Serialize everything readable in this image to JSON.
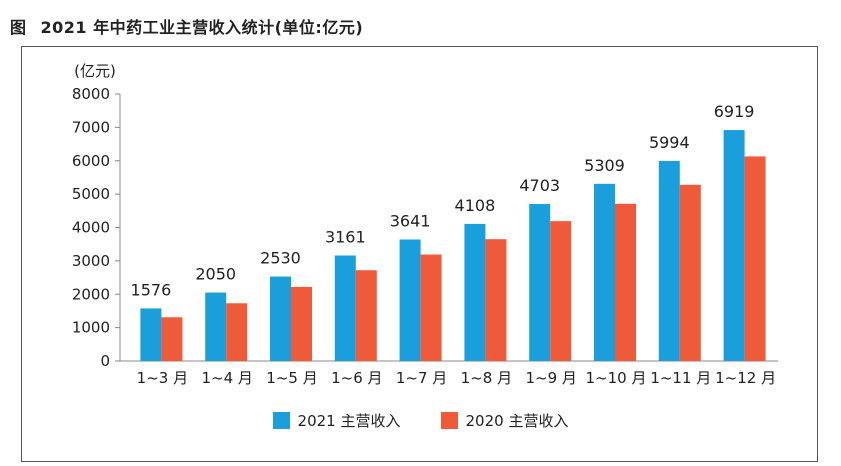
{
  "figure": {
    "label": "图",
    "title": "2021 年中药工业主营收入统计(单位:亿元)"
  },
  "chart_data": {
    "type": "bar",
    "unit_label": "(亿元)",
    "categories": [
      "1~3 月",
      "1~4 月",
      "1~5 月",
      "1~6 月",
      "1~7 月",
      "1~8 月",
      "1~9 月",
      "1~10 月",
      "1~11 月",
      "1~12 月"
    ],
    "series": [
      {
        "name": "2021 主营收入",
        "color": "#1a9fdc",
        "values": [
          1576,
          2050,
          2530,
          3161,
          3641,
          4108,
          4703,
          5309,
          5994,
          6919
        ],
        "data_labels": [
          "1576",
          "2050",
          "2530",
          "3161",
          "3641",
          "4108",
          "4703",
          "5309",
          "5994",
          "6919"
        ]
      },
      {
        "name": "2020 主营收入",
        "color": "#ef5a3a",
        "values": [
          1310,
          1730,
          2220,
          2720,
          3190,
          3650,
          4190,
          4710,
          5280,
          6130
        ]
      }
    ],
    "ylim": [
      0,
      8000
    ],
    "yticks": [
      "0",
      "1000",
      "2000",
      "3000",
      "4000",
      "5000",
      "6000",
      "7000",
      "8000"
    ],
    "legend_position": "bottom",
    "grid": false
  }
}
